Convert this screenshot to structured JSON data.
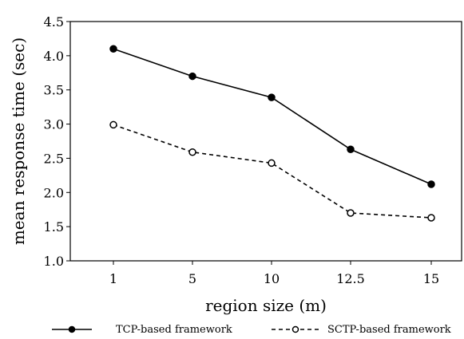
{
  "chart_data": {
    "type": "line",
    "title": "",
    "xlabel": "region size (m)",
    "ylabel": "mean response time (sec)",
    "categories": [
      "1",
      "5",
      "10",
      "12.5",
      "15"
    ],
    "ylim": [
      1.0,
      4.5
    ],
    "yticks": [
      "1.0",
      "1.5",
      "2.0",
      "2.5",
      "3.0",
      "3.5",
      "4.0",
      "4.5"
    ],
    "grid": false,
    "legend_position": "bottom",
    "series": [
      {
        "name": "TCP-based framework",
        "values": [
          4.1,
          3.7,
          3.39,
          2.63,
          2.12
        ],
        "line_style": "solid",
        "marker": "filled-circle",
        "color": "#000000"
      },
      {
        "name": "SCTP-based framework",
        "values": [
          2.99,
          2.59,
          2.43,
          1.7,
          1.63
        ],
        "line_style": "dashed",
        "marker": "hollow-circle",
        "color": "#000000"
      }
    ]
  }
}
